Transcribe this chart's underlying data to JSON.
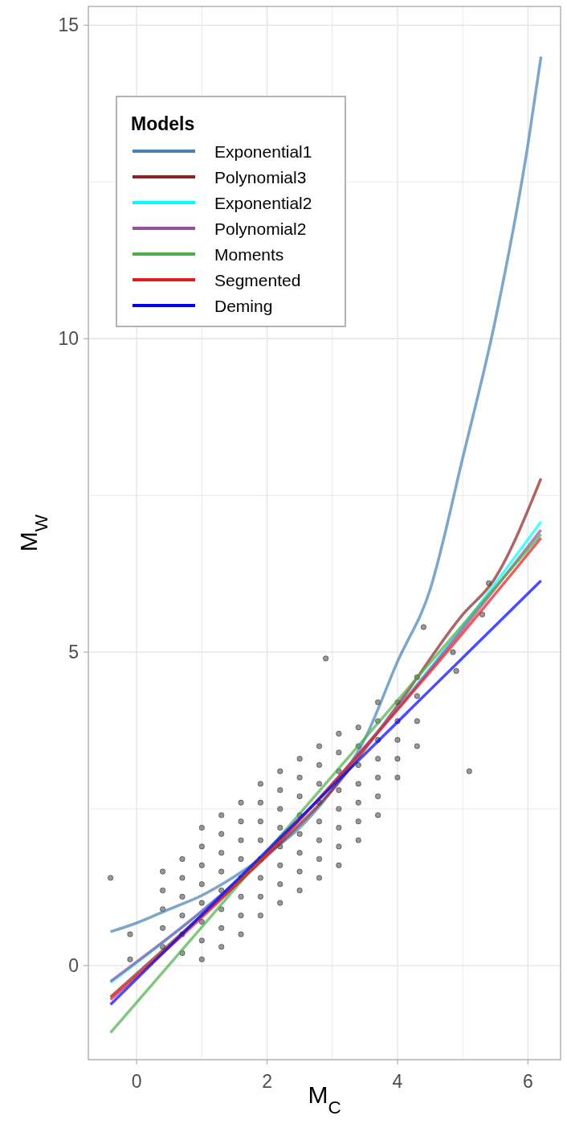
{
  "chart_data": {
    "type": "line",
    "xlabel": "M$_{C}$",
    "ylabel": "M$_{W}$",
    "legend_title": "Models",
    "legend": "top left",
    "grid": true,
    "xlim": [
      -0.74,
      6.5
    ],
    "xticks": [
      0,
      {
        "value": 1,
        "label": null
      },
      2,
      {
        "value": 3,
        "label": null
      },
      4,
      {
        "value": 5,
        "label": null
      },
      6
    ],
    "ylim": [
      -1.5,
      15.3
    ],
    "yticks": [
      0,
      {
        "value": 2.5,
        "label": null
      },
      5,
      {
        "value": 7.5,
        "label": null
      },
      10,
      {
        "value": 12.5,
        "label": null
      },
      15
    ],
    "series": [
      {
        "type": "scatter",
        "marker": "circle",
        "color": "#000000",
        "x": [
          0.4,
          0.4,
          0.4,
          0.4,
          0.4,
          0.7,
          0.7,
          0.7,
          0.7,
          0.7,
          0.7,
          1.0,
          1.0,
          1.0,
          1.0,
          1.0,
          1.0,
          1.0,
          1.0,
          1.3,
          1.3,
          1.3,
          1.3,
          1.3,
          1.3,
          1.3,
          1.3,
          1.6,
          1.6,
          1.6,
          1.6,
          1.6,
          1.6,
          1.6,
          1.6,
          1.9,
          1.9,
          1.9,
          1.9,
          1.9,
          1.9,
          1.9,
          1.9,
          2.2,
          2.2,
          2.2,
          2.2,
          2.2,
          2.2,
          2.2,
          2.2,
          2.5,
          2.5,
          2.5,
          2.5,
          2.5,
          2.5,
          2.5,
          2.5,
          2.8,
          2.8,
          2.8,
          2.8,
          2.8,
          2.8,
          2.8,
          2.8,
          3.1,
          3.1,
          3.1,
          3.1,
          3.1,
          3.1,
          3.1,
          3.1,
          3.4,
          3.4,
          3.4,
          3.4,
          3.4,
          3.4,
          3.4,
          3.7,
          3.7,
          3.7,
          3.7,
          3.7,
          3.7,
          3.7,
          4.0,
          4.0,
          4.0,
          4.0,
          4.0,
          4.3,
          4.3,
          4.3,
          4.3,
          -0.4,
          -0.1,
          -0.1,
          2.9,
          5.1,
          4.4,
          4.85,
          4.9,
          5.3,
          5.4
        ],
        "values": [
          0.3,
          0.6,
          0.9,
          1.2,
          1.5,
          0.2,
          0.5,
          0.8,
          1.1,
          1.4,
          1.7,
          0.1,
          0.4,
          0.7,
          1.0,
          1.3,
          1.6,
          1.9,
          2.2,
          0.3,
          0.6,
          0.9,
          1.2,
          1.5,
          1.8,
          2.1,
          2.4,
          0.5,
          0.8,
          1.1,
          1.4,
          1.7,
          2.0,
          2.3,
          2.6,
          0.8,
          1.1,
          1.4,
          1.7,
          2.0,
          2.3,
          2.6,
          2.9,
          1.0,
          1.3,
          1.6,
          1.9,
          2.2,
          2.5,
          2.8,
          3.1,
          1.2,
          1.5,
          1.8,
          2.1,
          2.4,
          2.7,
          3.0,
          3.3,
          1.4,
          1.7,
          2.0,
          2.3,
          2.6,
          2.9,
          3.2,
          3.5,
          1.6,
          1.9,
          2.2,
          2.5,
          2.8,
          3.1,
          3.4,
          3.7,
          2.0,
          2.3,
          2.6,
          2.9,
          3.2,
          3.5,
          3.8,
          2.4,
          2.7,
          3.0,
          3.3,
          3.6,
          3.9,
          4.2,
          3.0,
          3.3,
          3.6,
          3.9,
          4.2,
          3.5,
          3.9,
          4.3,
          4.6,
          1.4,
          0.5,
          0.1,
          4.9,
          3.1,
          5.4,
          5.0,
          4.7,
          5.6,
          6.1
        ]
      },
      {
        "name": "Exponential1",
        "color": "#4682b4",
        "x": [
          -0.4,
          0,
          0.5,
          1,
          1.5,
          2,
          2.5,
          3,
          3.5,
          4,
          4.5,
          5,
          5.5,
          6,
          6.2
        ],
        "values": [
          0.54,
          0.68,
          0.9,
          1.12,
          1.42,
          1.78,
          2.2,
          2.8,
          3.62,
          4.85,
          6.0,
          8.1,
          10.3,
          13.1,
          14.5
        ]
      },
      {
        "name": "Polynomial3",
        "color": "#8b2323",
        "x": [
          -0.4,
          1,
          2,
          3,
          4,
          5,
          5.47,
          6.2
        ],
        "values": [
          -0.5,
          0.8,
          1.75,
          2.8,
          4.15,
          5.6,
          6.14,
          7.77
        ]
      },
      {
        "name": "Exponential2",
        "color": "#00ffff",
        "x": [
          -0.4,
          2,
          4,
          6.2
        ],
        "values": [
          -0.27,
          1.8,
          4.1,
          7.08
        ]
      },
      {
        "name": "Polynomial2",
        "color": "#984ea3",
        "x": [
          -0.4,
          2,
          4,
          6.2
        ],
        "values": [
          -0.25,
          1.8,
          4.1,
          6.95
        ]
      },
      {
        "name": "Moments",
        "color": "#4daf4a",
        "x": [
          -0.4,
          6.2
        ],
        "values": [
          -1.07,
          6.88
        ]
      },
      {
        "name": "Segmented",
        "color": "#e41a1c",
        "x": [
          -0.4,
          2,
          4.48,
          6.2
        ],
        "values": [
          -0.54,
          1.78,
          4.66,
          6.82
        ]
      },
      {
        "name": "Deming",
        "color": "#0000ff",
        "x": [
          -0.4,
          6.2
        ],
        "values": [
          -0.62,
          6.14
        ]
      }
    ]
  }
}
